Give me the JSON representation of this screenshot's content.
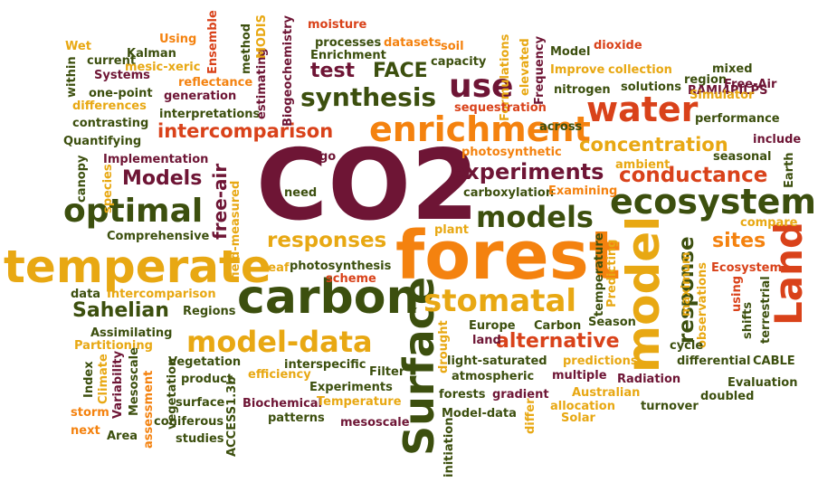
{
  "palette": {
    "green": "#3c4f0e",
    "orange": "#f4820f",
    "gold": "#e8a813",
    "maroon": "#6e1535",
    "red": "#d9421a"
  },
  "words": [
    {
      "text": "CO2",
      "color": "maroon"
    },
    {
      "text": "forest",
      "color": "orange"
    },
    {
      "text": "temperate",
      "color": "gold"
    },
    {
      "text": "carbon",
      "color": "green"
    },
    {
      "text": "model",
      "color": "gold"
    },
    {
      "text": "Surface",
      "color": "green"
    },
    {
      "text": "Land",
      "color": "red"
    },
    {
      "text": "enrichment",
      "color": "orange"
    },
    {
      "text": "water",
      "color": "red"
    },
    {
      "text": "ecosystem",
      "color": "green"
    },
    {
      "text": "optimal",
      "color": "green"
    },
    {
      "text": "stomatal",
      "color": "gold"
    },
    {
      "text": "models",
      "color": "green"
    },
    {
      "text": "model-data",
      "color": "gold"
    },
    {
      "text": "use",
      "color": "maroon"
    },
    {
      "text": "synthesis",
      "color": "green"
    },
    {
      "text": "intercomparison",
      "color": "red"
    },
    {
      "text": "experiments",
      "color": "maroon"
    },
    {
      "text": "concentration",
      "color": "gold"
    },
    {
      "text": "conductance",
      "color": "red"
    },
    {
      "text": "responses",
      "color": "gold"
    },
    {
      "text": "response",
      "color": "green"
    },
    {
      "text": "alternative",
      "color": "red"
    },
    {
      "text": "Sahelian",
      "color": "green"
    },
    {
      "text": "Models",
      "color": "maroon"
    },
    {
      "text": "free-air",
      "color": "maroon"
    },
    {
      "text": "sites",
      "color": "orange"
    },
    {
      "text": "test",
      "color": "maroon"
    },
    {
      "text": "FACE",
      "color": "green"
    },
    {
      "text": "Wet",
      "color": "gold"
    },
    {
      "text": "Using",
      "color": "orange"
    },
    {
      "text": "Kalman",
      "color": "green"
    },
    {
      "text": "current",
      "color": "green"
    },
    {
      "text": "mesic-xeric",
      "color": "gold"
    },
    {
      "text": "within",
      "color": "green"
    },
    {
      "text": "Systems",
      "color": "maroon"
    },
    {
      "text": "one-point",
      "color": "green"
    },
    {
      "text": "differences",
      "color": "gold"
    },
    {
      "text": "contrasting",
      "color": "green"
    },
    {
      "text": "Quantifying",
      "color": "green"
    },
    {
      "text": "reflectance",
      "color": "orange"
    },
    {
      "text": "generation",
      "color": "maroon"
    },
    {
      "text": "interpretations",
      "color": "green"
    },
    {
      "text": "Ensemble",
      "color": "red"
    },
    {
      "text": "method",
      "color": "green"
    },
    {
      "text": "estimating",
      "color": "maroon"
    },
    {
      "text": "MODIS",
      "color": "gold"
    },
    {
      "text": "Biogeochemistry",
      "color": "maroon"
    },
    {
      "text": "moisture",
      "color": "red"
    },
    {
      "text": "processes",
      "color": "green"
    },
    {
      "text": "datasets",
      "color": "orange"
    },
    {
      "text": "soil",
      "color": "orange"
    },
    {
      "text": "Enrichment",
      "color": "green"
    },
    {
      "text": "capacity",
      "color": "green"
    },
    {
      "text": "Formulations",
      "color": "gold"
    },
    {
      "text": "elevated",
      "color": "gold"
    },
    {
      "text": "Frequency",
      "color": "maroon"
    },
    {
      "text": "Model",
      "color": "green"
    },
    {
      "text": "dioxide",
      "color": "red"
    },
    {
      "text": "Improve",
      "color": "gold"
    },
    {
      "text": "collection",
      "color": "gold"
    },
    {
      "text": "region",
      "color": "green"
    },
    {
      "text": "mixed",
      "color": "green"
    },
    {
      "text": "RAMI4PILPS",
      "color": "maroon"
    },
    {
      "text": "Free-Air",
      "color": "maroon"
    },
    {
      "text": "nitrogen",
      "color": "green"
    },
    {
      "text": "solutions",
      "color": "green"
    },
    {
      "text": "Simulator",
      "color": "gold"
    },
    {
      "text": "sequestration",
      "color": "red"
    },
    {
      "text": "performance",
      "color": "green"
    },
    {
      "text": "across",
      "color": "green"
    },
    {
      "text": "include",
      "color": "maroon"
    },
    {
      "text": "photosynthetic",
      "color": "orange"
    },
    {
      "text": "seasonal",
      "color": "green"
    },
    {
      "text": "Implementation",
      "color": "maroon"
    },
    {
      "text": "go",
      "color": "maroon"
    },
    {
      "text": "ambient",
      "color": "gold"
    },
    {
      "text": "Earth",
      "color": "green"
    },
    {
      "text": "canopy",
      "color": "green"
    },
    {
      "text": "species",
      "color": "gold"
    },
    {
      "text": "field-measured",
      "color": "gold"
    },
    {
      "text": "need",
      "color": "green"
    },
    {
      "text": "carboxylation",
      "color": "green"
    },
    {
      "text": "Examining",
      "color": "orange"
    },
    {
      "text": "compare",
      "color": "gold"
    },
    {
      "text": "Comprehensive",
      "color": "green"
    },
    {
      "text": "plant",
      "color": "gold"
    },
    {
      "text": "temperature",
      "color": "green"
    },
    {
      "text": "Predicting",
      "color": "gold"
    },
    {
      "text": "Ecosystem",
      "color": "red"
    },
    {
      "text": "using",
      "color": "red"
    },
    {
      "text": "terrestrial",
      "color": "green"
    },
    {
      "text": "maximum",
      "color": "gold"
    },
    {
      "text": "observations",
      "color": "gold"
    },
    {
      "text": "shifts",
      "color": "green"
    },
    {
      "text": "Leaf",
      "color": "gold"
    },
    {
      "text": "photosynthesis",
      "color": "green"
    },
    {
      "text": "scheme",
      "color": "red"
    },
    {
      "text": "data",
      "color": "green"
    },
    {
      "text": "Intercomparison",
      "color": "gold"
    },
    {
      "text": "Regions",
      "color": "green"
    },
    {
      "text": "Assimilating",
      "color": "green"
    },
    {
      "text": "Partitioning",
      "color": "gold"
    },
    {
      "text": "Europe",
      "color": "green"
    },
    {
      "text": "Carbon",
      "color": "green"
    },
    {
      "text": "Season",
      "color": "green"
    },
    {
      "text": "land",
      "color": "maroon"
    },
    {
      "text": "cycle",
      "color": "green"
    },
    {
      "text": "Index",
      "color": "green"
    },
    {
      "text": "Climate",
      "color": "gold"
    },
    {
      "text": "Variability",
      "color": "maroon"
    },
    {
      "text": "Mesoscale",
      "color": "green"
    },
    {
      "text": "assessment",
      "color": "orange"
    },
    {
      "text": "vegetation",
      "color": "green"
    },
    {
      "text": "Vegetation",
      "color": "green"
    },
    {
      "text": "product",
      "color": "green"
    },
    {
      "text": "efficiency",
      "color": "gold"
    },
    {
      "text": "interspecific",
      "color": "green"
    },
    {
      "text": "drought",
      "color": "gold"
    },
    {
      "text": "Filter",
      "color": "green"
    },
    {
      "text": "light-saturated",
      "color": "green"
    },
    {
      "text": "atmospheric",
      "color": "green"
    },
    {
      "text": "multiple",
      "color": "maroon"
    },
    {
      "text": "predictions",
      "color": "gold"
    },
    {
      "text": "Radiation",
      "color": "maroon"
    },
    {
      "text": "differential",
      "color": "green"
    },
    {
      "text": "CABLE",
      "color": "green"
    },
    {
      "text": "storm",
      "color": "orange"
    },
    {
      "text": "surface",
      "color": "green"
    },
    {
      "text": "ACCESS1.3b",
      "color": "green"
    },
    {
      "text": "Experiments",
      "color": "green"
    },
    {
      "text": "Biochemical",
      "color": "maroon"
    },
    {
      "text": "Temperature",
      "color": "gold"
    },
    {
      "text": "patterns",
      "color": "green"
    },
    {
      "text": "gradient",
      "color": "maroon"
    },
    {
      "text": "forests",
      "color": "green"
    },
    {
      "text": "Australian",
      "color": "gold"
    },
    {
      "text": "allocation",
      "color": "gold"
    },
    {
      "text": "Evaluation",
      "color": "green"
    },
    {
      "text": "doubled",
      "color": "green"
    },
    {
      "text": "turnover",
      "color": "green"
    },
    {
      "text": "next",
      "color": "orange"
    },
    {
      "text": "Area",
      "color": "green"
    },
    {
      "text": "coniferous",
      "color": "green"
    },
    {
      "text": "studies",
      "color": "green"
    },
    {
      "text": "mesoscale",
      "color": "maroon"
    },
    {
      "text": "Model-data",
      "color": "green"
    },
    {
      "text": "initiation",
      "color": "green"
    },
    {
      "text": "differ",
      "color": "gold"
    },
    {
      "text": "Solar",
      "color": "gold"
    }
  ]
}
